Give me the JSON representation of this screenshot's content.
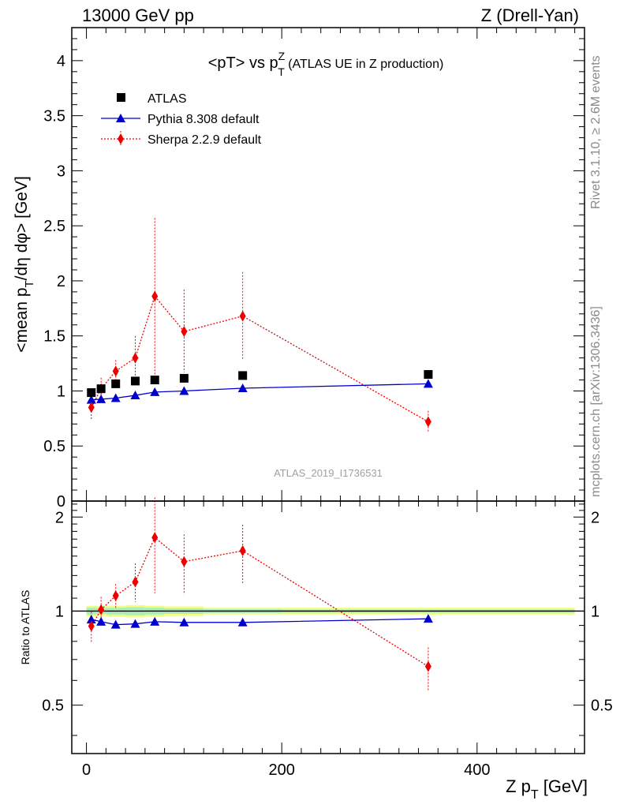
{
  "header": {
    "left": "13000 GeV pp",
    "right": "Z (Drell-Yan)"
  },
  "side_labels": {
    "rivet": "Rivet 3.1.10, ≥ 2.6M events",
    "mcplots": "mcplots.cern.ch [arXiv:1306.3436]"
  },
  "watermark": "ATLAS_2019_I1736531",
  "colors": {
    "atlas": "#000000",
    "pythia": "#0000cc",
    "sherpa": "#ee0000",
    "band_inner": "#aaeebb",
    "band_outer": "#f0ff80"
  },
  "chart_data": [
    {
      "type": "scatter",
      "panel": "main",
      "title": "<pT> vs pT^Z (ATLAS UE in Z production)",
      "title_parts": {
        "main": "<pT> vs p",
        "sup": "Z",
        "sub": "T",
        "rest": " (ATLAS UE in Z production)"
      },
      "ylabel": "<mean p_T/dη dφ> [GeV]",
      "ylabel_parts": {
        "pre": "<mean p",
        "sub": "T",
        "post": "/dη dφ> [GeV]"
      },
      "xlim": [
        -15,
        510
      ],
      "ylim": [
        0,
        4.3
      ],
      "yticks": [
        0,
        0.5,
        1,
        1.5,
        2,
        2.5,
        3,
        3.5,
        4
      ],
      "ytick_labels": [
        "0",
        "0.5",
        "1",
        "1.5",
        "2",
        "2.5",
        "3",
        "3.5",
        "4"
      ],
      "legend_position": "top-left",
      "series": [
        {
          "name": "ATLAS",
          "marker": "square",
          "x": [
            5,
            15,
            30,
            50,
            70,
            100,
            160,
            350
          ],
          "y": [
            0.985,
            1.02,
            1.065,
            1.09,
            1.1,
            1.115,
            1.14,
            1.15
          ]
        },
        {
          "name": "Pythia 8.308 default",
          "marker": "triangle",
          "line": "solid",
          "x": [
            5,
            15,
            30,
            50,
            70,
            100,
            160,
            350
          ],
          "y": [
            0.92,
            0.925,
            0.935,
            0.96,
            0.99,
            1.0,
            1.025,
            1.065
          ],
          "err": [
            0.01,
            0.01,
            0.01,
            0.01,
            0.01,
            0.01,
            0.01,
            0.015
          ]
        },
        {
          "name": "Sherpa 2.2.9 default",
          "marker": "diamond",
          "line": "dotted",
          "x": [
            5,
            15,
            30,
            50,
            70,
            100,
            160,
            350
          ],
          "y": [
            0.85,
            1.02,
            1.18,
            1.3,
            1.86,
            1.54,
            1.68,
            0.72
          ],
          "err_lo": [
            0.11,
            0.1,
            0.11,
            0.18,
            0.71,
            0.37,
            0.39,
            0.1
          ],
          "err_hi": [
            0.11,
            0.1,
            0.1,
            0.2,
            0.71,
            0.38,
            0.4,
            0.1
          ]
        }
      ]
    },
    {
      "type": "scatter",
      "panel": "ratio",
      "ylabel": "Ratio to ATLAS",
      "xlabel": "Z p_T [GeV]",
      "xlabel_parts": {
        "pre": "Z p",
        "sub": "T",
        "post": " [GeV]"
      },
      "xlim": [
        -15,
        510
      ],
      "ylim": [
        0.35,
        2.25
      ],
      "yticks": [
        0.5,
        1,
        2
      ],
      "ytick_labels": [
        "0.5",
        "1",
        "2"
      ],
      "xticks": [
        0,
        200,
        400
      ],
      "xtick_labels": [
        "0",
        "200",
        "400"
      ],
      "band": {
        "x": [
          0,
          10,
          20,
          40,
          60,
          80,
          120,
          200,
          500
        ],
        "inner": [
          0.025,
          0.02,
          0.025,
          0.03,
          0.025,
          0.02,
          0.015,
          0.012
        ],
        "outer": [
          0.04,
          0.035,
          0.04,
          0.045,
          0.04,
          0.035,
          0.025,
          0.025
        ]
      },
      "series": [
        {
          "name": "Pythia 8.308 default",
          "x": [
            5,
            15,
            30,
            50,
            70,
            100,
            160,
            350
          ],
          "y": [
            0.94,
            0.925,
            0.905,
            0.91,
            0.925,
            0.92,
            0.92,
            0.945
          ],
          "err": [
            0.01,
            0.01,
            0.01,
            0.01,
            0.01,
            0.01,
            0.01,
            0.015
          ]
        },
        {
          "name": "Sherpa 2.2.9 default",
          "x": [
            5,
            15,
            30,
            50,
            70,
            100,
            160,
            350
          ],
          "y": [
            0.895,
            1.01,
            1.12,
            1.24,
            1.72,
            1.44,
            1.56,
            0.665
          ],
          "err_lo": [
            0.1,
            0.1,
            0.1,
            0.17,
            0.58,
            0.31,
            0.33,
            0.11
          ],
          "err_hi": [
            0.1,
            0.1,
            0.1,
            0.18,
            0.59,
            0.32,
            0.33,
            0.1
          ]
        }
      ]
    }
  ]
}
